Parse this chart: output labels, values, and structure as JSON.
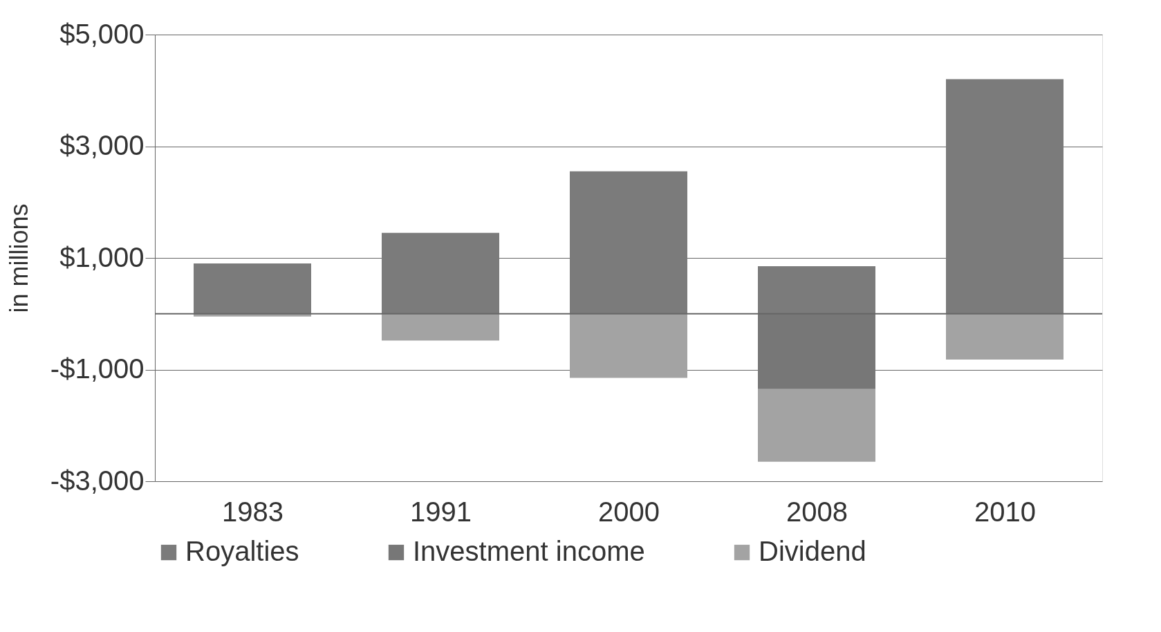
{
  "chart_data": {
    "type": "bar",
    "stacked": true,
    "ylabel": "in millions",
    "categories": [
      "1983",
      "1991",
      "2000",
      "2008",
      "2010"
    ],
    "series": [
      {
        "name": "Royalties",
        "color": "#7b7b7b",
        "values": [
          900,
          1450,
          2550,
          850,
          4200
        ]
      },
      {
        "name": "Investment income",
        "color": "#777777",
        "values": [
          null,
          null,
          null,
          -1350,
          null
        ]
      },
      {
        "name": "Dividend",
        "color": "#a3a3a3",
        "values": [
          -50,
          -480,
          -1150,
          -1300,
          -820
        ]
      }
    ],
    "ylim": [
      -3000,
      5000
    ],
    "yticks": [
      {
        "value": -3000,
        "label": "-$3,000"
      },
      {
        "value": -1000,
        "label": "-$1,000"
      },
      {
        "value": 1000,
        "label": "$1,000"
      },
      {
        "value": 3000,
        "label": "$3,000"
      },
      {
        "value": 5000,
        "label": "$5,000"
      }
    ],
    "ref_lines": [
      {
        "axis": "y",
        "value": 0,
        "color": "#666666"
      }
    ],
    "grid": "y",
    "legend": "bottom"
  }
}
